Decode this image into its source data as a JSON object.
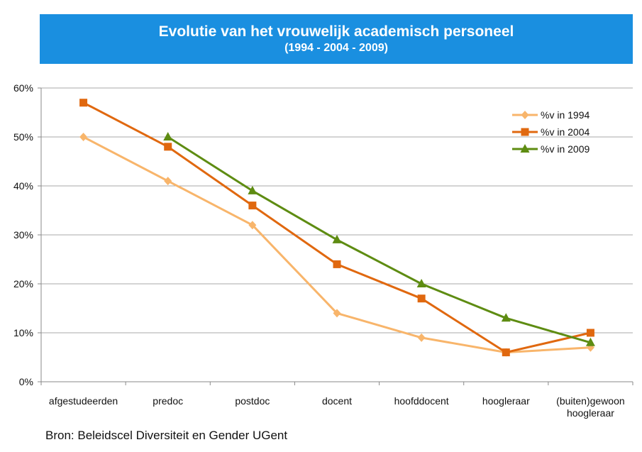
{
  "header": {
    "title": "Evolutie van het vrouwelijk academisch personeel",
    "subtitle": "(1994 - 2004 - 2009)"
  },
  "footer": {
    "source": "Bron: Beleidscel Diversiteit en Gender UGent"
  },
  "chart_data": {
    "type": "line",
    "title": "Evolutie van het vrouwelijk academisch personeel",
    "subtitle": "(1994 - 2004 - 2009)",
    "categories": [
      [
        "afgestudeerden"
      ],
      [
        "predoc"
      ],
      [
        "postdoc"
      ],
      [
        "docent"
      ],
      [
        "hoofddocent"
      ],
      [
        "hoogleraar"
      ],
      [
        "(buiten)gewoon",
        "hoogleraar"
      ]
    ],
    "y_ticks": [
      "0%",
      "10%",
      "20%",
      "30%",
      "40%",
      "50%",
      "60%"
    ],
    "ylim": [
      0,
      60
    ],
    "grid": true,
    "legend_position": "top-right",
    "series": [
      {
        "name": "%v in 1994",
        "color": "#f8b56b",
        "marker": "diamond",
        "values": [
          50,
          41,
          32,
          14,
          9,
          6,
          7
        ]
      },
      {
        "name": "%v in 2004",
        "color": "#e0680f",
        "marker": "square",
        "values": [
          57,
          48,
          36,
          24,
          17,
          6,
          10
        ]
      },
      {
        "name": "%v in 2009",
        "color": "#5e8c12",
        "marker": "triangle",
        "values": [
          null,
          50,
          39,
          29,
          20,
          13,
          8
        ]
      }
    ]
  }
}
